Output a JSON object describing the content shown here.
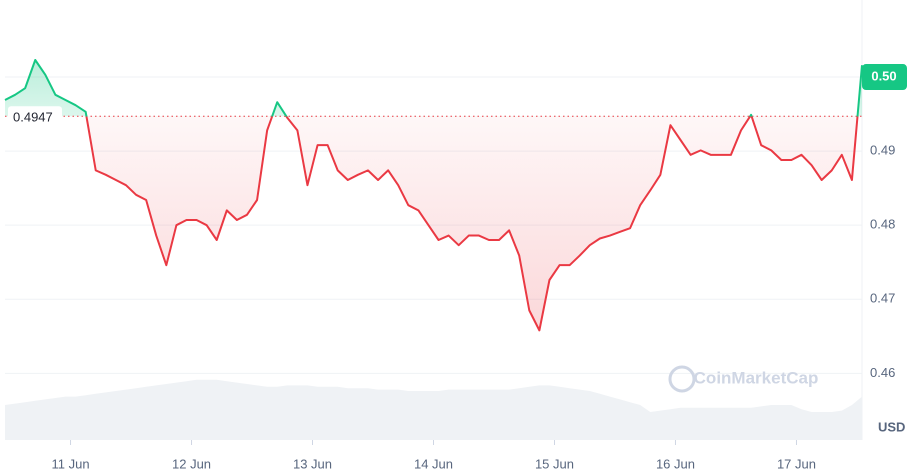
{
  "chart_data": {
    "type": "line",
    "baseline": {
      "value": 0.4947,
      "label": "0.4947"
    },
    "current_price_label": {
      "value": 0.5,
      "label": "0.50"
    },
    "currency": "USD",
    "watermark": "CoinMarketCap",
    "xlim": [
      0,
      170
    ],
    "xticks": [
      {
        "value": 13,
        "label": "11 Jun"
      },
      {
        "value": 37,
        "label": "12 Jun"
      },
      {
        "value": 61,
        "label": "13 Jun"
      },
      {
        "value": 85,
        "label": "14 Jun"
      },
      {
        "value": 109,
        "label": "15 Jun"
      },
      {
        "value": 133,
        "label": "16 Jun"
      },
      {
        "value": 157,
        "label": "17 Jun"
      }
    ],
    "ylim": [
      0.451,
      0.5104
    ],
    "yticks": [
      0.46,
      0.47,
      0.48,
      {
        "value": 0.49,
        "label": "0.49"
      },
      {
        "value": 0.5,
        "label": "0.50"
      }
    ],
    "y2lim": [
      0,
      100
    ],
    "grid": true,
    "x": [
      0,
      2,
      4,
      6,
      8,
      10,
      12,
      14,
      16,
      18,
      20,
      22,
      24,
      26,
      28,
      30,
      32,
      34,
      36,
      38,
      40,
      42,
      44,
      46,
      48,
      50,
      52,
      54,
      56,
      58,
      60,
      62,
      64,
      66,
      68,
      70,
      72,
      74,
      76,
      78,
      80,
      82,
      84,
      86,
      88,
      90,
      92,
      94,
      96,
      98,
      100,
      102,
      104,
      106,
      108,
      110,
      112,
      114,
      116,
      118,
      120,
      122,
      124,
      126,
      128,
      130,
      132,
      134,
      136,
      138,
      140,
      142,
      144,
      146,
      148,
      150,
      152,
      154,
      156,
      158,
      160,
      162,
      164,
      166,
      168,
      170
    ],
    "series": [
      {
        "name": "Price",
        "up_color": "#16c784",
        "down_color": "#ea3943",
        "values": [
          0.4969,
          0.4976,
          0.4985,
          0.5023,
          0.5003,
          0.4976,
          0.4969,
          0.4962,
          0.4953,
          0.4874,
          0.4868,
          0.4861,
          0.4854,
          0.4841,
          0.4834,
          0.4786,
          0.4746,
          0.48,
          0.4807,
          0.4807,
          0.48,
          0.478,
          0.482,
          0.4807,
          0.4814,
          0.4834,
          0.4928,
          0.4966,
          0.4945,
          0.4928,
          0.4854,
          0.4908,
          0.4908,
          0.4874,
          0.4861,
          0.4868,
          0.4874,
          0.4861,
          0.4874,
          0.4854,
          0.4827,
          0.482,
          0.48,
          0.478,
          0.4786,
          0.4773,
          0.4786,
          0.4786,
          0.478,
          0.478,
          0.4793,
          0.4759,
          0.4685,
          0.4658,
          0.4726,
          0.4746,
          0.4746,
          0.4759,
          0.4773,
          0.4782,
          0.4786,
          0.4791,
          0.4796,
          0.4827,
          0.4847,
          0.4868,
          0.4935,
          0.4915,
          0.4895,
          0.4901,
          0.4895,
          0.4895,
          0.4895,
          0.4928,
          0.4949,
          0.4908,
          0.4901,
          0.4888,
          0.4888,
          0.4895,
          0.4881,
          0.4861,
          0.4874,
          0.4895,
          0.4861,
          0.5016
        ]
      },
      {
        "name": "Volume",
        "axis": "y2",
        "color": "#eff2f5",
        "values": [
          50,
          52,
          54,
          56,
          58,
          60,
          62,
          62,
          64,
          66,
          68,
          70,
          72,
          74,
          76,
          78,
          80,
          82,
          84,
          86,
          86,
          86,
          84,
          82,
          80,
          78,
          76,
          76,
          78,
          78,
          78,
          76,
          76,
          76,
          74,
          74,
          74,
          72,
          72,
          72,
          70,
          70,
          70,
          70,
          72,
          72,
          72,
          72,
          72,
          72,
          72,
          74,
          76,
          78,
          78,
          76,
          74,
          72,
          70,
          66,
          62,
          58,
          54,
          50,
          40,
          42,
          44,
          46,
          46,
          46,
          46,
          46,
          46,
          46,
          46,
          48,
          50,
          50,
          50,
          44,
          40,
          40,
          40,
          42,
          50,
          62
        ]
      }
    ]
  }
}
